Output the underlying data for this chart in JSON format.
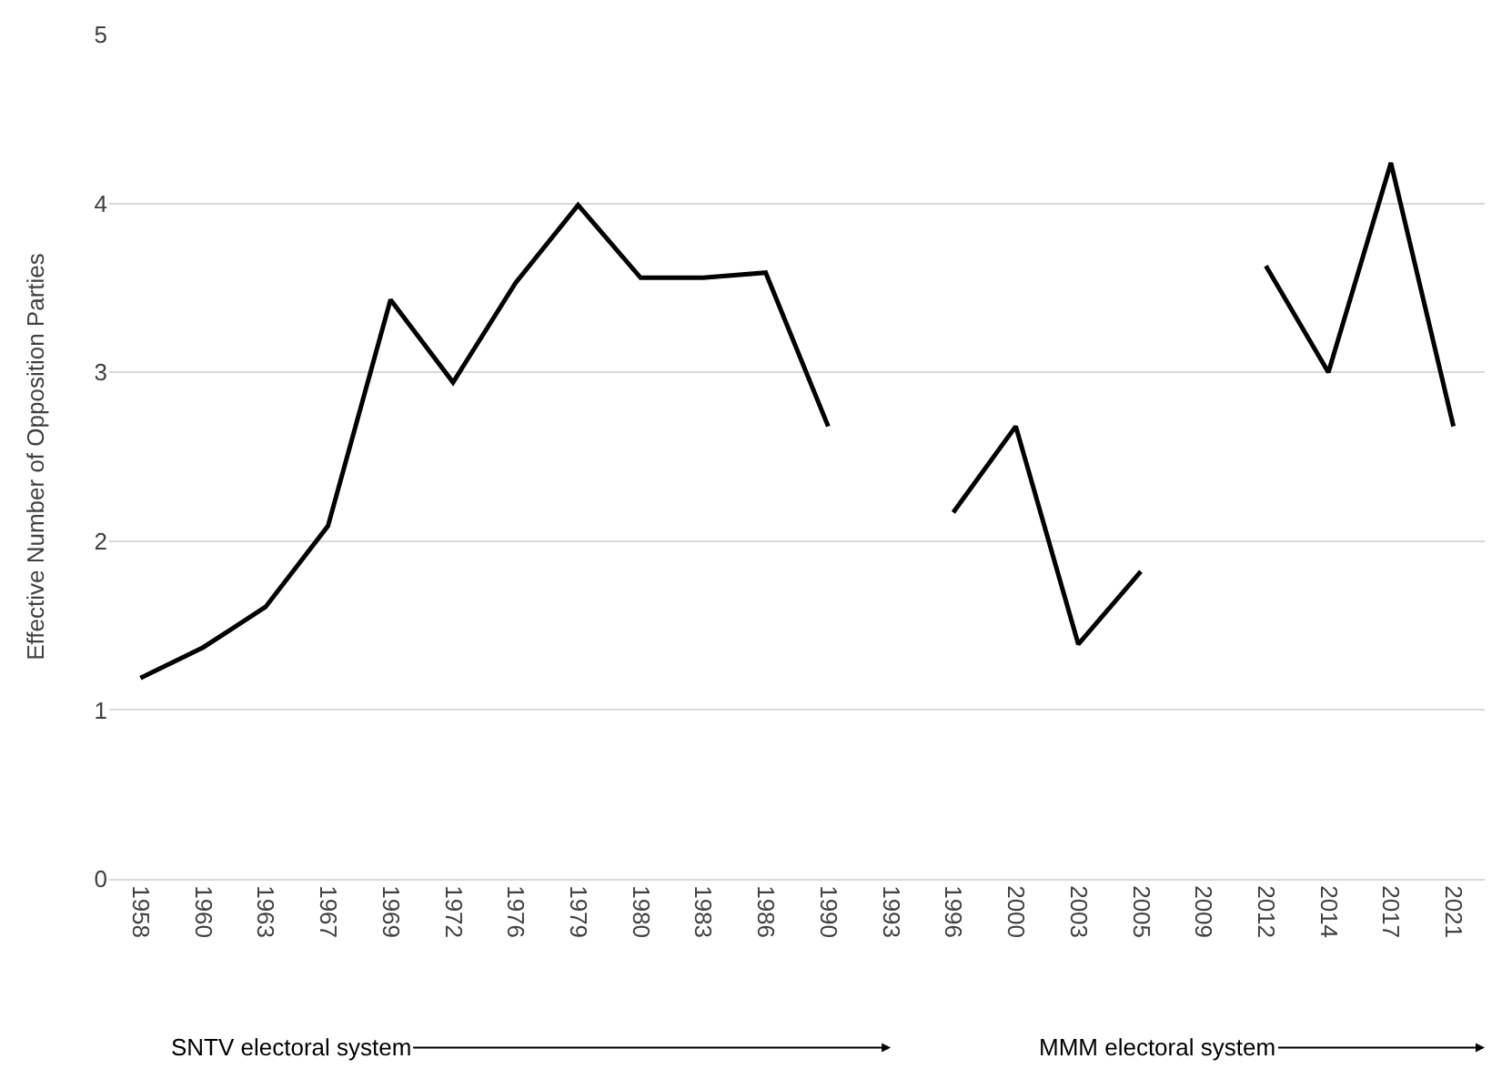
{
  "chart_data": {
    "type": "line",
    "ylabel": "Effective Number of Opposition Parties",
    "categories": [
      "1958",
      "1960",
      "1963",
      "1967",
      "1969",
      "1972",
      "1976",
      "1979",
      "1980",
      "1983",
      "1986",
      "1990",
      "1993",
      "1996",
      "2000",
      "2003",
      "2005",
      "2009",
      "2012",
      "2014",
      "2017",
      "2021"
    ],
    "series": [
      {
        "color": "#000000",
        "values": [
          1.19,
          1.37,
          1.61,
          2.09,
          3.43,
          2.94,
          3.53,
          3.99,
          3.56,
          3.56,
          3.59,
          2.68,
          null,
          2.17,
          2.68,
          1.39,
          1.82,
          null,
          3.63,
          3.0,
          4.24,
          2.68
        ]
      }
    ],
    "ylim": [
      0,
      5
    ],
    "yticks": [
      0,
      1,
      2,
      3,
      4,
      5
    ],
    "grid": "y",
    "marker": "none",
    "line_style": "solid",
    "annotations": [
      "SNTV electoral system",
      "MMM electoral system"
    ]
  }
}
